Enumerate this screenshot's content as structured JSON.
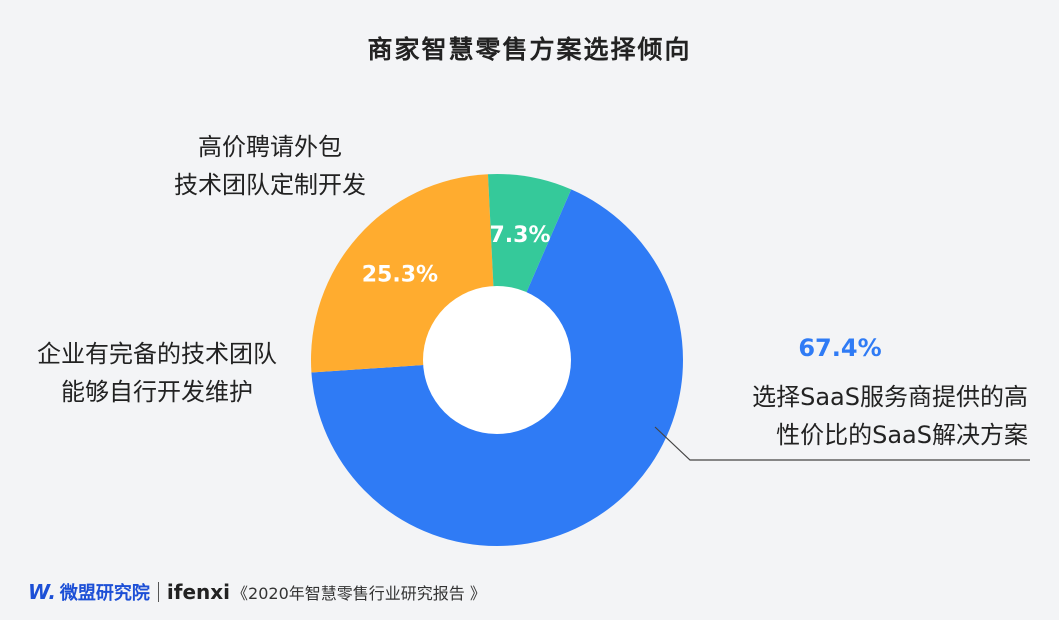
{
  "chart_data": {
    "type": "pie",
    "title": "商家智慧零售方案选择倾向",
    "slices": [
      {
        "label_lines": [
          "选择SaaS服务商提供的高",
          "性价比的SaaS解决方案"
        ],
        "value": 67.4,
        "value_label": "67.4%",
        "color": "#2f7bf5"
      },
      {
        "label_lines": [
          "企业有完备的技术团队",
          "能够自行开发维护"
        ],
        "value": 25.3,
        "value_label": "25.3%",
        "color": "#ffac2f"
      },
      {
        "label_lines": [
          "高价聘请外包",
          "技术团队定制开发"
        ],
        "value": 7.3,
        "value_label": "7.3%",
        "color": "#35c99a"
      }
    ]
  },
  "footer": {
    "logo_mark": "W.",
    "logo_text": "微盟研究院",
    "brand": "ifenxi",
    "source": "《2020年智慧零售行业研究报告 》"
  }
}
